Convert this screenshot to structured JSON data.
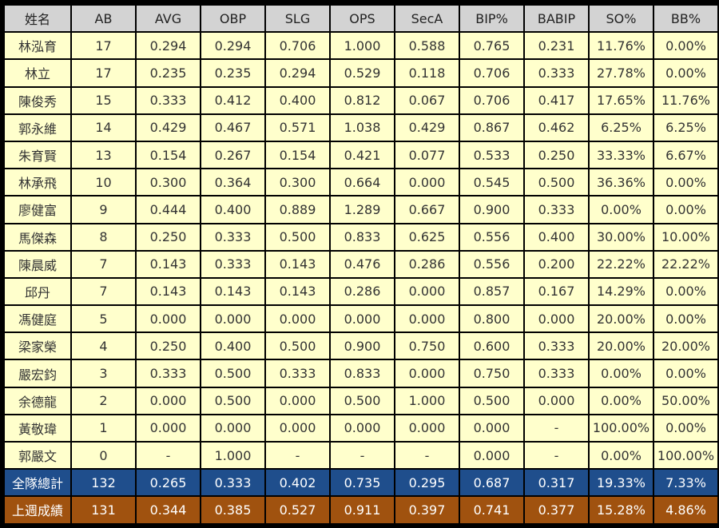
{
  "headers": [
    "姓名",
    "AB",
    "AVG",
    "OBP",
    "SLG",
    "OPS",
    "SecA",
    "BIP%",
    "BABIP",
    "SO%",
    "BB%"
  ],
  "rows": [
    [
      "林泓育",
      "17",
      "0.294",
      "0.294",
      "0.706",
      "1.000",
      "0.588",
      "0.765",
      "0.231",
      "11.76%",
      "0.00%"
    ],
    [
      "林立",
      "17",
      "0.235",
      "0.235",
      "0.294",
      "0.529",
      "0.118",
      "0.706",
      "0.333",
      "27.78%",
      "0.00%"
    ],
    [
      "陳俊秀",
      "15",
      "0.333",
      "0.412",
      "0.400",
      "0.812",
      "0.067",
      "0.706",
      "0.417",
      "17.65%",
      "11.76%"
    ],
    [
      "郭永維",
      "14",
      "0.429",
      "0.467",
      "0.571",
      "1.038",
      "0.429",
      "0.867",
      "0.462",
      "6.25%",
      "6.25%"
    ],
    [
      "朱育賢",
      "13",
      "0.154",
      "0.267",
      "0.154",
      "0.421",
      "0.077",
      "0.533",
      "0.250",
      "33.33%",
      "6.67%"
    ],
    [
      "林承飛",
      "10",
      "0.300",
      "0.364",
      "0.300",
      "0.664",
      "0.000",
      "0.545",
      "0.500",
      "36.36%",
      "0.00%"
    ],
    [
      "廖健富",
      "9",
      "0.444",
      "0.400",
      "0.889",
      "1.289",
      "0.667",
      "0.900",
      "0.333",
      "0.00%",
      "0.00%"
    ],
    [
      "馬傑森",
      "8",
      "0.250",
      "0.333",
      "0.500",
      "0.833",
      "0.625",
      "0.556",
      "0.400",
      "30.00%",
      "10.00%"
    ],
    [
      "陳晨威",
      "7",
      "0.143",
      "0.333",
      "0.143",
      "0.476",
      "0.286",
      "0.556",
      "0.200",
      "22.22%",
      "22.22%"
    ],
    [
      "邱丹",
      "7",
      "0.143",
      "0.143",
      "0.143",
      "0.286",
      "0.000",
      "0.857",
      "0.167",
      "14.29%",
      "0.00%"
    ],
    [
      "馮健庭",
      "5",
      "0.000",
      "0.000",
      "0.000",
      "0.000",
      "0.000",
      "0.800",
      "0.000",
      "20.00%",
      "0.00%"
    ],
    [
      "梁家榮",
      "4",
      "0.250",
      "0.400",
      "0.500",
      "0.900",
      "0.750",
      "0.600",
      "0.333",
      "20.00%",
      "20.00%"
    ],
    [
      "嚴宏鈞",
      "3",
      "0.333",
      "0.500",
      "0.333",
      "0.833",
      "0.000",
      "0.750",
      "0.333",
      "0.00%",
      "0.00%"
    ],
    [
      "余德龍",
      "2",
      "0.000",
      "0.500",
      "0.000",
      "0.500",
      "1.000",
      "0.500",
      "0.000",
      "0.00%",
      "50.00%"
    ],
    [
      "黃敬瑋",
      "1",
      "0.000",
      "0.000",
      "0.000",
      "0.000",
      "0.000",
      "0.000",
      "-",
      "100.00%",
      "0.00%"
    ],
    [
      "郭嚴文",
      "0",
      "-",
      "1.000",
      "-",
      "-",
      "-",
      "0.000",
      "-",
      "0.00%",
      "100.00%"
    ]
  ],
  "total": [
    "全隊總計",
    "132",
    "0.265",
    "0.333",
    "0.402",
    "0.735",
    "0.295",
    "0.687",
    "0.317",
    "19.33%",
    "7.33%"
  ],
  "last_week": [
    "上週成績",
    "131",
    "0.344",
    "0.385",
    "0.527",
    "0.911",
    "0.397",
    "0.741",
    "0.377",
    "15.28%",
    "4.86%"
  ],
  "colors": {
    "header_bg": "#d3d3d3",
    "cell_bg": "#ffffcc",
    "total_bg": "#1f4e8c",
    "last_week_bg": "#a0520f"
  }
}
